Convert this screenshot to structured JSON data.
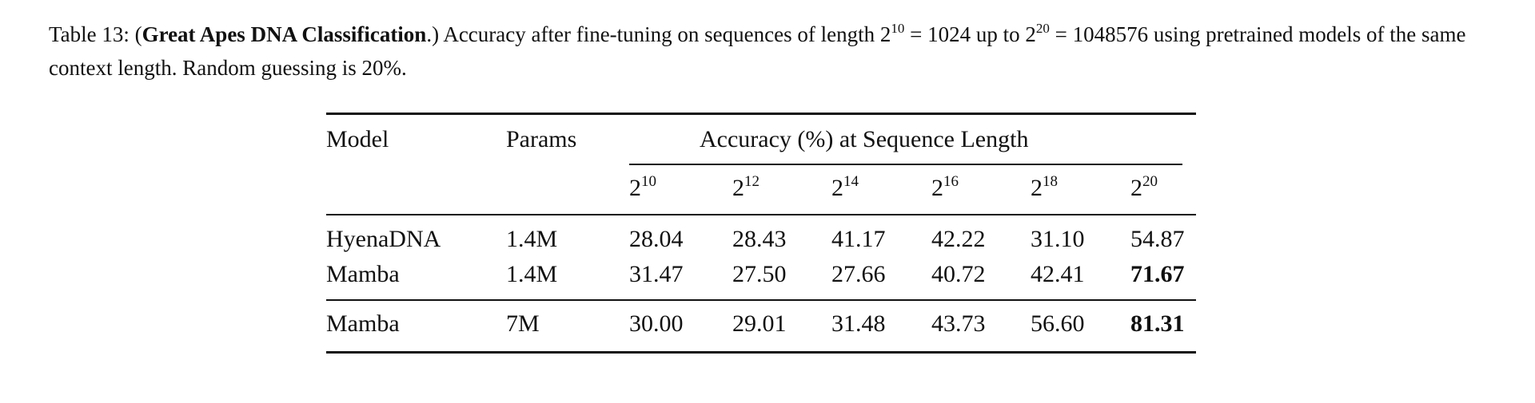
{
  "caption": {
    "label": "Table 13: (",
    "bold": "Great Apes DNA Classification",
    "text1": ".) Accuracy after fine-tuning on sequences of length 2",
    "exp1": "10",
    "text2": " = 1024 up to 2",
    "exp2": "20",
    "text3": " = 1048576 using pretrained models of the same context length. Random guessing is 20%."
  },
  "table": {
    "headers": {
      "model": "Model",
      "params": "Params",
      "group": "Accuracy (%) at Sequence Length"
    },
    "lengths": [
      {
        "base": "2",
        "exp": "10"
      },
      {
        "base": "2",
        "exp": "12"
      },
      {
        "base": "2",
        "exp": "14"
      },
      {
        "base": "2",
        "exp": "16"
      },
      {
        "base": "2",
        "exp": "18"
      },
      {
        "base": "2",
        "exp": "20"
      }
    ],
    "rows": [
      {
        "model": "HyenaDNA",
        "params": "1.4M",
        "values": [
          "28.04",
          "28.43",
          "41.17",
          "42.22",
          "31.10",
          "54.87"
        ],
        "bold": []
      },
      {
        "model": "Mamba",
        "params": "1.4M",
        "values": [
          "31.47",
          "27.50",
          "27.66",
          "40.72",
          "42.41",
          "71.67"
        ],
        "bold": [
          5
        ]
      },
      {
        "model": "Mamba",
        "params": "7M",
        "values": [
          "30.00",
          "29.01",
          "31.48",
          "43.73",
          "56.60",
          "81.31"
        ],
        "bold": [
          5
        ]
      }
    ]
  }
}
